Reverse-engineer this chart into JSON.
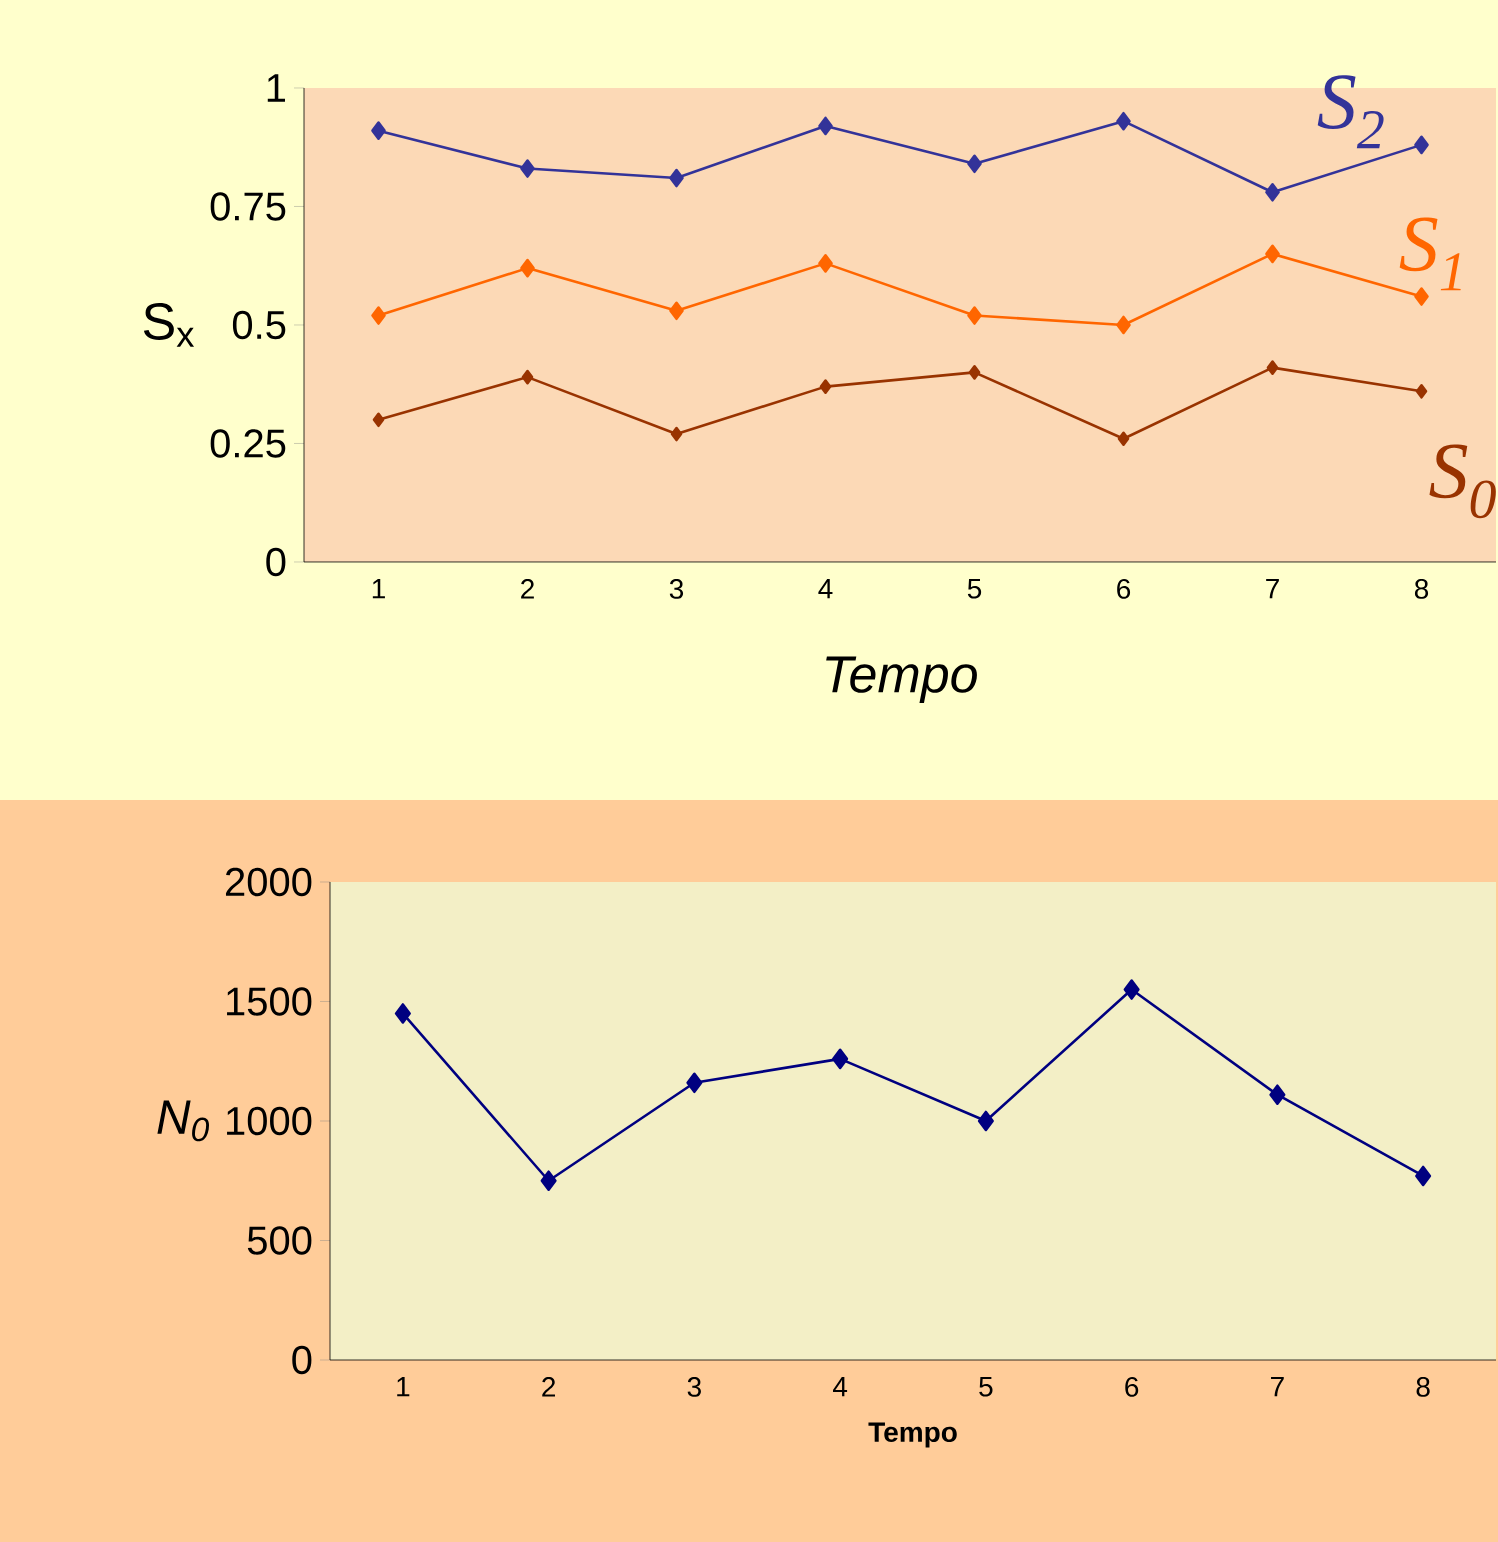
{
  "chart_data": [
    {
      "type": "line",
      "xlabel": "Tempo",
      "ylabel": "S$_{x}$",
      "categories": [
        "1",
        "2",
        "3",
        "4",
        "5",
        "6",
        "7",
        "8"
      ],
      "ylim": [
        0,
        1
      ],
      "yticks": [
        0,
        0.25,
        0.5,
        0.75,
        1
      ],
      "marker": "diamond",
      "line_style": "solid",
      "series": [
        {
          "name": "S$_{2}$",
          "color": "#333399",
          "values": [
            0.91,
            0.83,
            0.81,
            0.92,
            0.84,
            0.93,
            0.78,
            0.88
          ]
        },
        {
          "name": "S$_{1}$",
          "color": "#ff6600",
          "values": [
            0.52,
            0.62,
            0.53,
            0.63,
            0.52,
            0.5,
            0.65,
            0.56
          ]
        },
        {
          "name": "S$_{0}$",
          "color": "#993300",
          "values": [
            0.3,
            0.39,
            0.27,
            0.37,
            0.4,
            0.26,
            0.41,
            0.36
          ]
        }
      ]
    },
    {
      "type": "line",
      "xlabel": "Tempo",
      "ylabel": "N$_{0}$",
      "categories": [
        "1",
        "2",
        "3",
        "4",
        "5",
        "6",
        "7",
        "8"
      ],
      "ylim": [
        0,
        2000
      ],
      "yticks": [
        0,
        500,
        1000,
        1500,
        2000
      ],
      "marker": "diamond",
      "line_style": "solid",
      "color": "#000080",
      "values": [
        1450,
        750,
        1160,
        1260,
        1000,
        1550,
        1110,
        770
      ]
    }
  ]
}
